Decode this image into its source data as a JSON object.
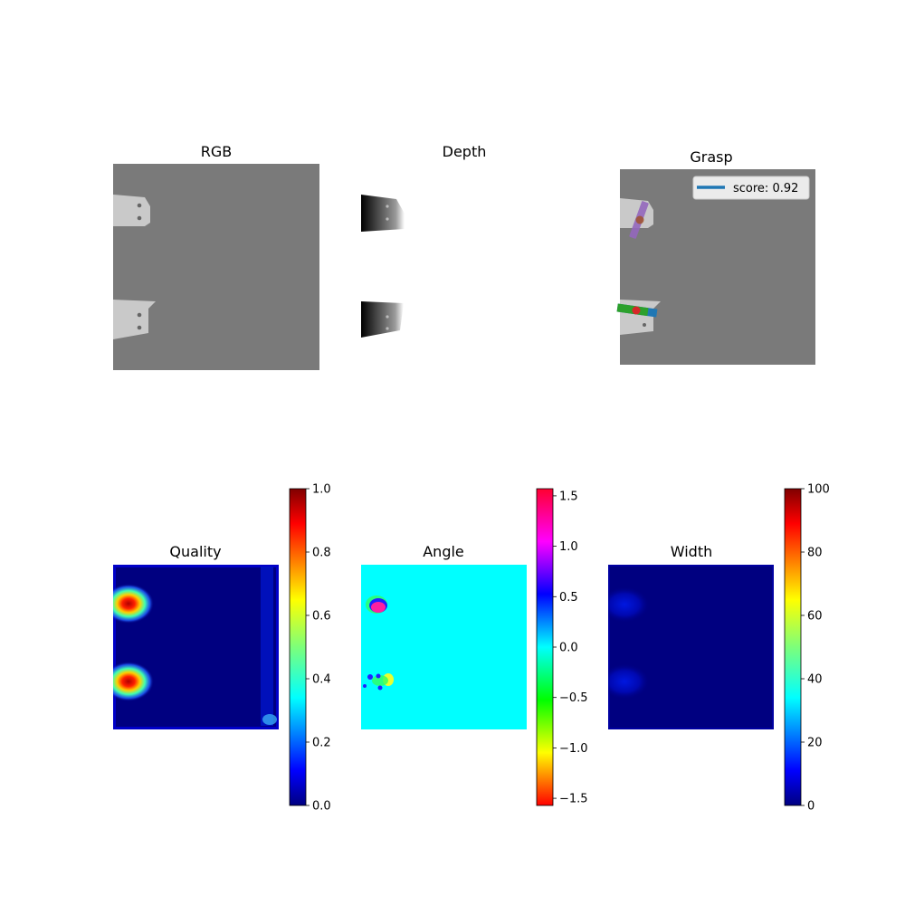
{
  "chart_data": [
    {
      "type": "image",
      "title": "RGB"
    },
    {
      "type": "image",
      "title": "Depth"
    },
    {
      "type": "image",
      "title": "Grasp",
      "legend": {
        "label": "score: 0.92",
        "position": "upper right"
      }
    },
    {
      "type": "heatmap",
      "title": "Quality",
      "colormap": "jet",
      "colorbar": {
        "range": [
          0.0,
          1.0
        ],
        "ticks": [
          "0.0",
          "0.2",
          "0.4",
          "0.6",
          "0.8",
          "1.0"
        ],
        "tick_values": [
          0,
          0.2,
          0.4,
          0.6,
          0.8,
          1.0
        ]
      }
    },
    {
      "type": "heatmap",
      "title": "Angle",
      "colormap": "hsv",
      "colorbar": {
        "range": [
          -1.571,
          1.571
        ],
        "ticks": [
          "−1.5",
          "−1.0",
          "−0.5",
          "0.0",
          "0.5",
          "1.0",
          "1.5"
        ],
        "tick_values": [
          -1.5,
          -1.0,
          -0.5,
          0.0,
          0.5,
          1.0,
          1.5
        ]
      }
    },
    {
      "type": "heatmap",
      "title": "Width",
      "colormap": "jet",
      "colorbar": {
        "range": [
          0,
          100
        ],
        "ticks": [
          "0",
          "20",
          "40",
          "60",
          "80",
          "100"
        ],
        "tick_values": [
          0,
          20,
          40,
          60,
          80,
          100
        ]
      }
    }
  ],
  "colors": {
    "background_gray": "#7a7a7a",
    "object_light": "#c8c8c8",
    "grasp_line": "#1f77b4",
    "grasp_green": "#2ca02c",
    "grasp_purple": "#9467bd",
    "grasp_center": "#d62728",
    "heat_background": "#000080",
    "angle_background": "#00ffff"
  }
}
